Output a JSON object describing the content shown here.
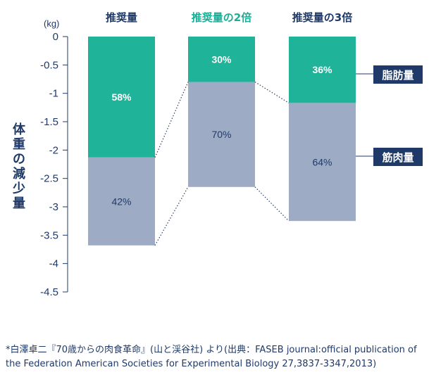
{
  "chart_data": {
    "type": "bar",
    "stacked": true,
    "unit": "(kg)",
    "ylabel": "体重の減少量",
    "ylim": [
      -4.5,
      0
    ],
    "yticks": [
      "0",
      "-0.5",
      "-1",
      "-1.5",
      "-2",
      "-2.5",
      "-3",
      "-3.5",
      "-4",
      "-4.5"
    ],
    "categories": [
      "推奨量",
      "推奨量の2倍",
      "推奨量の3倍"
    ],
    "category_colors": [
      "#1f3a68",
      "#1aae96",
      "#1f3a68"
    ],
    "totals": [
      -3.68,
      -2.65,
      -3.25
    ],
    "series": [
      {
        "name": "脂肪量",
        "color": "#1fb39a",
        "percent": [
          "58%",
          "30%",
          "36%"
        ],
        "values": [
          -2.13,
          -0.8,
          -1.17
        ]
      },
      {
        "name": "筋肉量",
        "color": "#9eabc5",
        "percent": [
          "42%",
          "70%",
          "64%"
        ],
        "values": [
          -1.55,
          -1.85,
          -2.08
        ]
      }
    ],
    "legend_color": "#1f3a68"
  },
  "footnote": "*白澤卓二『70歳からの肉食革命』(山と渓谷社) より(出典：FASEB journal:official publication of the Federation American Societies for Experimental Biology 27,3837-3347,2013)"
}
